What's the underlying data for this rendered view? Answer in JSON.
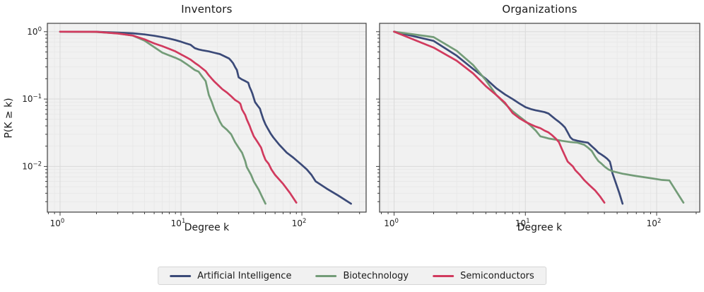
{
  "figure": {
    "ylabel": "P(K ≥ k)"
  },
  "legend": {
    "items": [
      {
        "label": "Artificial Intelligence",
        "color": "#3b4a78"
      },
      {
        "label": "Biotechnology",
        "color": "#739c78"
      },
      {
        "label": "Semiconductors",
        "color": "#d13a5e"
      }
    ]
  },
  "chart_data": [
    {
      "type": "line",
      "title": "Inventors",
      "xlabel": "Degree k",
      "ylabel": "P(K ≥ k)",
      "xscale": "log",
      "yscale": "log",
      "xlim": [
        0.785,
        340
      ],
      "ylim": [
        0.0021,
        1.33
      ],
      "x_tick_exponents": [
        0,
        1,
        2
      ],
      "y_tick_exponents": [
        0,
        -1,
        -2
      ],
      "grid": "major+minor",
      "series": [
        {
          "name": "Artificial Intelligence",
          "color": "#3b4a78",
          "points": [
            [
              1,
              1.0
            ],
            [
              2,
              0.995
            ],
            [
              3,
              0.97
            ],
            [
              4,
              0.945
            ],
            [
              5,
              0.91
            ],
            [
              6,
              0.87
            ],
            [
              7,
              0.83
            ],
            [
              8,
              0.79
            ],
            [
              9,
              0.75
            ],
            [
              10,
              0.71
            ],
            [
              11,
              0.67
            ],
            [
              12,
              0.64
            ],
            [
              13,
              0.57
            ],
            [
              14,
              0.545
            ],
            [
              15,
              0.53
            ],
            [
              17,
              0.51
            ],
            [
              19,
              0.485
            ],
            [
              21,
              0.465
            ],
            [
              23,
              0.43
            ],
            [
              25,
              0.4
            ],
            [
              26,
              0.37
            ],
            [
              27,
              0.34
            ],
            [
              28,
              0.3
            ],
            [
              29,
              0.27
            ],
            [
              30,
              0.21
            ],
            [
              32,
              0.195
            ],
            [
              34,
              0.185
            ],
            [
              36,
              0.175
            ],
            [
              37,
              0.15
            ],
            [
              38,
              0.135
            ],
            [
              39,
              0.12
            ],
            [
              41,
              0.09
            ],
            [
              43,
              0.08
            ],
            [
              45,
              0.072
            ],
            [
              46,
              0.063
            ],
            [
              48,
              0.05
            ],
            [
              50,
              0.042
            ],
            [
              52,
              0.037
            ],
            [
              55,
              0.031
            ],
            [
              58,
              0.027
            ],
            [
              65,
              0.021
            ],
            [
              75,
              0.016
            ],
            [
              85,
              0.0135
            ],
            [
              100,
              0.0105
            ],
            [
              110,
              0.009
            ],
            [
              120,
              0.0075
            ],
            [
              130,
              0.006
            ],
            [
              160,
              0.0047
            ],
            [
              200,
              0.0037
            ],
            [
              255,
              0.0028
            ]
          ]
        },
        {
          "name": "Biotechnology",
          "color": "#739c78",
          "points": [
            [
              1,
              1.0
            ],
            [
              2,
              0.99
            ],
            [
              3,
              0.945
            ],
            [
              4,
              0.875
            ],
            [
              5,
              0.735
            ],
            [
              6,
              0.59
            ],
            [
              7,
              0.49
            ],
            [
              8,
              0.445
            ],
            [
              9,
              0.41
            ],
            [
              10,
              0.375
            ],
            [
              11,
              0.335
            ],
            [
              12,
              0.3
            ],
            [
              13,
              0.27
            ],
            [
              14,
              0.255
            ],
            [
              15,
              0.215
            ],
            [
              16,
              0.185
            ],
            [
              17,
              0.115
            ],
            [
              18,
              0.09
            ],
            [
              19,
              0.068
            ],
            [
              20,
              0.056
            ],
            [
              21,
              0.046
            ],
            [
              22,
              0.04
            ],
            [
              24,
              0.035
            ],
            [
              26,
              0.03
            ],
            [
              28,
              0.023
            ],
            [
              30,
              0.019
            ],
            [
              32,
              0.016
            ],
            [
              34,
              0.012
            ],
            [
              35,
              0.0098
            ],
            [
              38,
              0.0075
            ],
            [
              40,
              0.006
            ],
            [
              44,
              0.0045
            ],
            [
              47,
              0.0035
            ],
            [
              50,
              0.0028
            ]
          ]
        },
        {
          "name": "Semiconductors",
          "color": "#d13a5e",
          "points": [
            [
              1,
              1.0
            ],
            [
              2,
              0.995
            ],
            [
              3,
              0.94
            ],
            [
              4,
              0.875
            ],
            [
              5,
              0.77
            ],
            [
              6,
              0.67
            ],
            [
              7,
              0.61
            ],
            [
              8,
              0.555
            ],
            [
              9,
              0.51
            ],
            [
              10,
              0.46
            ],
            [
              11,
              0.42
            ],
            [
              12,
              0.385
            ],
            [
              13,
              0.345
            ],
            [
              14,
              0.315
            ],
            [
              15,
              0.285
            ],
            [
              16,
              0.26
            ],
            [
              17,
              0.225
            ],
            [
              18,
              0.2
            ],
            [
              19,
              0.18
            ],
            [
              20,
              0.165
            ],
            [
              22,
              0.14
            ],
            [
              24,
              0.125
            ],
            [
              26,
              0.11
            ],
            [
              28,
              0.097
            ],
            [
              30,
              0.09
            ],
            [
              31,
              0.085
            ],
            [
              32,
              0.07
            ],
            [
              34,
              0.058
            ],
            [
              35,
              0.05
            ],
            [
              37,
              0.04
            ],
            [
              38,
              0.035
            ],
            [
              40,
              0.028
            ],
            [
              43,
              0.023
            ],
            [
              46,
              0.019
            ],
            [
              48,
              0.015
            ],
            [
              50,
              0.0125
            ],
            [
              53,
              0.011
            ],
            [
              56,
              0.009
            ],
            [
              60,
              0.0075
            ],
            [
              70,
              0.0055
            ],
            [
              80,
              0.004
            ],
            [
              90,
              0.0029
            ]
          ]
        }
      ]
    },
    {
      "type": "line",
      "title": "Organizations",
      "xlabel": "Degree k",
      "xscale": "log",
      "yscale": "log",
      "xlim": [
        0.775,
        213
      ],
      "ylim": [
        0.0021,
        1.33
      ],
      "x_tick_exponents": [
        0,
        1,
        2
      ],
      "y_tick_exponents": [
        0,
        -1,
        -2
      ],
      "y_tick_labels_hidden": true,
      "grid": "major+minor",
      "series": [
        {
          "name": "Artificial Intelligence",
          "color": "#3b4a78",
          "points": [
            [
              1,
              1.0
            ],
            [
              2,
              0.73
            ],
            [
              3,
              0.44
            ],
            [
              4,
              0.28
            ],
            [
              5,
              0.2
            ],
            [
              6,
              0.145
            ],
            [
              7,
              0.117
            ],
            [
              8,
              0.1
            ],
            [
              9,
              0.086
            ],
            [
              10,
              0.076
            ],
            [
              11,
              0.071
            ],
            [
              12,
              0.068
            ],
            [
              13,
              0.066
            ],
            [
              14,
              0.064
            ],
            [
              15,
              0.061
            ],
            [
              16,
              0.055
            ],
            [
              17,
              0.05
            ],
            [
              18,
              0.046
            ],
            [
              19,
              0.042
            ],
            [
              20,
              0.038
            ],
            [
              21,
              0.032
            ],
            [
              22,
              0.027
            ],
            [
              23,
              0.025
            ],
            [
              25,
              0.024
            ],
            [
              28,
              0.023
            ],
            [
              30,
              0.0225
            ],
            [
              32,
              0.02
            ],
            [
              34,
              0.018
            ],
            [
              36,
              0.016
            ],
            [
              38,
              0.015
            ],
            [
              40,
              0.014
            ],
            [
              42,
              0.013
            ],
            [
              44,
              0.0118
            ],
            [
              45,
              0.01
            ],
            [
              46,
              0.008
            ],
            [
              48,
              0.0063
            ],
            [
              50,
              0.005
            ],
            [
              52,
              0.004
            ],
            [
              55,
              0.0028
            ]
          ]
        },
        {
          "name": "Biotechnology",
          "color": "#739c78",
          "points": [
            [
              1,
              1.0
            ],
            [
              2,
              0.83
            ],
            [
              3,
              0.52
            ],
            [
              4,
              0.32
            ],
            [
              5,
              0.19
            ],
            [
              6,
              0.115
            ],
            [
              7,
              0.085
            ],
            [
              8,
              0.066
            ],
            [
              9,
              0.055
            ],
            [
              10,
              0.047
            ],
            [
              11,
              0.04
            ],
            [
              12,
              0.034
            ],
            [
              13,
              0.028
            ],
            [
              14,
              0.027
            ],
            [
              15,
              0.026
            ],
            [
              17,
              0.025
            ],
            [
              19,
              0.024
            ],
            [
              22,
              0.023
            ],
            [
              25,
              0.0225
            ],
            [
              28,
              0.021
            ],
            [
              30,
              0.019
            ],
            [
              32,
              0.017
            ],
            [
              34,
              0.014
            ],
            [
              36,
              0.012
            ],
            [
              38,
              0.011
            ],
            [
              40,
              0.01
            ],
            [
              43,
              0.009
            ],
            [
              46,
              0.0085
            ],
            [
              55,
              0.0078
            ],
            [
              70,
              0.0072
            ],
            [
              90,
              0.0067
            ],
            [
              110,
              0.0063
            ],
            [
              125,
              0.0062
            ],
            [
              160,
              0.0029
            ]
          ]
        },
        {
          "name": "Semiconductors",
          "color": "#d13a5e",
          "points": [
            [
              1,
              1.0
            ],
            [
              2,
              0.58
            ],
            [
              3,
              0.37
            ],
            [
              4,
              0.24
            ],
            [
              5,
              0.155
            ],
            [
              6,
              0.115
            ],
            [
              7,
              0.088
            ],
            [
              8,
              0.062
            ],
            [
              9,
              0.052
            ],
            [
              10,
              0.046
            ],
            [
              11,
              0.042
            ],
            [
              12,
              0.039
            ],
            [
              13,
              0.037
            ],
            [
              14,
              0.034
            ],
            [
              15,
              0.032
            ],
            [
              16,
              0.029
            ],
            [
              17,
              0.026
            ],
            [
              18,
              0.023
            ],
            [
              19,
              0.018
            ],
            [
              20,
              0.0145
            ],
            [
              21,
              0.0118
            ],
            [
              23,
              0.01
            ],
            [
              24,
              0.0088
            ],
            [
              26,
              0.0075
            ],
            [
              28,
              0.0063
            ],
            [
              31,
              0.0052
            ],
            [
              34,
              0.0044
            ],
            [
              37,
              0.0036
            ],
            [
              40,
              0.0029
            ]
          ]
        }
      ]
    }
  ]
}
